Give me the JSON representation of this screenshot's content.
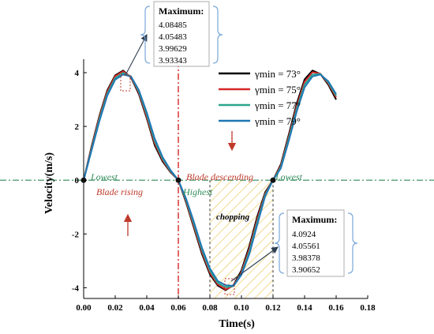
{
  "chart_data": {
    "type": "line",
    "xlabel": "Time(s)",
    "ylabel": "Velocity(m/s)",
    "xlim": [
      0,
      0.18
    ],
    "ylim": [
      -4.4,
      4.5
    ],
    "x_ticks": [
      "0.00",
      "0.02",
      "0.04",
      "0.06",
      "0.08",
      "0.10",
      "0.12",
      "0.14",
      "0.16",
      "0.18"
    ],
    "y_ticks": [
      "-4",
      "-2",
      "0",
      "2",
      "4"
    ],
    "legend_position": "top-right",
    "colors": [
      "#000000",
      "#d62728",
      "#2ca58d",
      "#1f77b4"
    ],
    "series": [
      {
        "name": "γmin = 73°",
        "x": [
          0,
          0.005,
          0.01,
          0.015,
          0.02,
          0.025,
          0.03,
          0.035,
          0.04,
          0.045,
          0.05,
          0.055,
          0.06,
          0.065,
          0.07,
          0.075,
          0.08,
          0.085,
          0.09,
          0.095,
          0.1,
          0.105,
          0.11,
          0.115,
          0.12,
          0.125,
          0.13,
          0.135,
          0.14,
          0.145,
          0.15,
          0.155,
          0.16
        ],
        "y": [
          0,
          1.25,
          2.4,
          3.35,
          3.9,
          4.08,
          3.82,
          3.2,
          2.3,
          1.3,
          0.7,
          0.3,
          0,
          -0.85,
          -1.8,
          -2.75,
          -3.5,
          -3.92,
          -4.09,
          -3.9,
          -3.35,
          -2.45,
          -1.35,
          -0.45,
          0,
          0.6,
          1.7,
          2.85,
          3.75,
          4.08,
          3.95,
          3.55,
          3.0
        ]
      },
      {
        "name": "γmin = 75°",
        "x": [
          0,
          0.005,
          0.01,
          0.015,
          0.02,
          0.025,
          0.03,
          0.035,
          0.04,
          0.045,
          0.05,
          0.055,
          0.06,
          0.065,
          0.07,
          0.075,
          0.08,
          0.085,
          0.09,
          0.095,
          0.1,
          0.105,
          0.11,
          0.115,
          0.12,
          0.125,
          0.13,
          0.135,
          0.14,
          0.145,
          0.15,
          0.155,
          0.16
        ],
        "y": [
          0,
          1.2,
          2.35,
          3.3,
          3.87,
          4.05,
          3.84,
          3.25,
          2.36,
          1.38,
          0.75,
          0.32,
          0,
          -0.8,
          -1.74,
          -2.68,
          -3.44,
          -3.88,
          -4.06,
          -3.93,
          -3.42,
          -2.55,
          -1.45,
          -0.5,
          0,
          0.55,
          1.62,
          2.75,
          3.66,
          4.02,
          3.96,
          3.6,
          3.08
        ]
      },
      {
        "name": "γmin = 77°",
        "x": [
          0,
          0.005,
          0.01,
          0.015,
          0.02,
          0.025,
          0.03,
          0.035,
          0.04,
          0.045,
          0.05,
          0.055,
          0.06,
          0.065,
          0.07,
          0.075,
          0.08,
          0.085,
          0.09,
          0.095,
          0.1,
          0.105,
          0.11,
          0.115,
          0.12,
          0.125,
          0.13,
          0.135,
          0.14,
          0.145,
          0.15,
          0.155,
          0.16
        ],
        "y": [
          0,
          1.15,
          2.28,
          3.22,
          3.8,
          3.99,
          3.86,
          3.3,
          2.44,
          1.46,
          0.8,
          0.35,
          0,
          -0.75,
          -1.66,
          -2.6,
          -3.36,
          -3.82,
          -3.98,
          -3.94,
          -3.48,
          -2.65,
          -1.56,
          -0.55,
          0,
          0.5,
          1.55,
          2.65,
          3.55,
          3.93,
          3.95,
          3.64,
          3.14
        ]
      },
      {
        "name": "γmin = 79°",
        "x": [
          0,
          0.005,
          0.01,
          0.015,
          0.02,
          0.025,
          0.03,
          0.035,
          0.04,
          0.045,
          0.05,
          0.055,
          0.06,
          0.065,
          0.07,
          0.075,
          0.08,
          0.085,
          0.09,
          0.095,
          0.1,
          0.105,
          0.11,
          0.115,
          0.12,
          0.125,
          0.13,
          0.135,
          0.14,
          0.145,
          0.15,
          0.155,
          0.16
        ],
        "y": [
          0,
          1.1,
          2.2,
          3.15,
          3.74,
          3.93,
          3.86,
          3.35,
          2.52,
          1.55,
          0.86,
          0.38,
          0,
          -0.7,
          -1.58,
          -2.52,
          -3.28,
          -3.75,
          -3.91,
          -3.93,
          -3.52,
          -2.75,
          -1.66,
          -0.6,
          0,
          0.45,
          1.47,
          2.55,
          3.45,
          3.86,
          3.93,
          3.68,
          3.2
        ]
      }
    ],
    "annotations": {
      "max_top": {
        "title": "Maximum:",
        "values": [
          "4.08485",
          "4.05483",
          "3.99629",
          "3.93343"
        ]
      },
      "max_bottom": {
        "title": "Maximum:",
        "values": [
          "4.0924",
          "4.05561",
          "3.98378",
          "3.90652"
        ]
      },
      "lowest_left": "Lowest",
      "lowest_right": "Lowest",
      "highest": "Highest",
      "blade_rising": "Blade rising",
      "blade_descending": "Blade descending",
      "chopping": "chopping"
    },
    "vertical_markers": [
      0.06,
      0.08,
      0.12
    ],
    "chopping_region": [
      0.08,
      0.12
    ],
    "key_points": [
      {
        "x": 0,
        "y": 0
      },
      {
        "x": 0.06,
        "y": 0
      },
      {
        "x": 0.12,
        "y": 0
      }
    ]
  }
}
